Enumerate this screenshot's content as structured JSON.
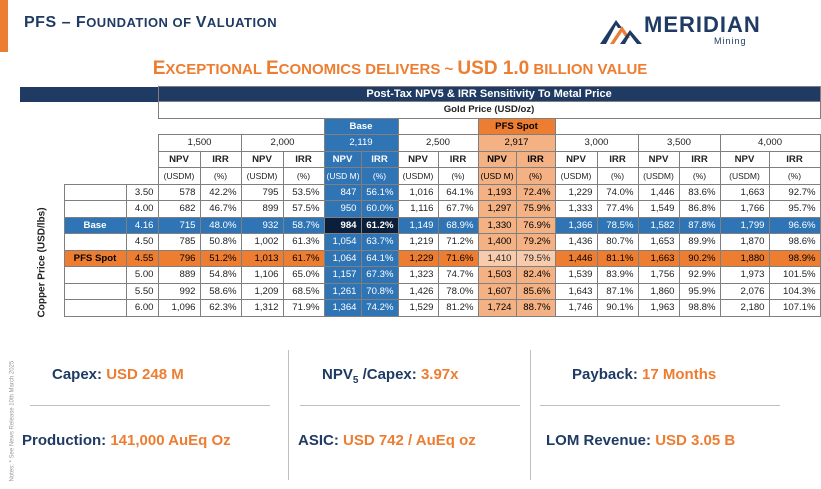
{
  "header": {
    "title_part1": "PFS – F",
    "title_part2": "OUNDATION OF ",
    "title_part3": "V",
    "title_part4": "ALUATION",
    "accent_color": "#ed7d31",
    "brand_color": "#1f3b63"
  },
  "logo": {
    "word": "MERIDIAN",
    "sub": "Mining"
  },
  "headline": {
    "p1": "E",
    "p2": "XCEPTIONAL ",
    "p3": "E",
    "p4": "CONOMICS DELIVERS ~ ",
    "p5": "USD 1.0",
    "p6": " BILLION VALUE"
  },
  "table": {
    "title": "Post-Tax NPV5 & IRR Sensitivity To Metal Price",
    "gold_axis": "Gold Price (USD/oz)",
    "copper_axis": "Copper Price (USD/lbs)",
    "scenario_labels": {
      "base": "Base",
      "spot": "PFS Spot"
    },
    "gold_prices": [
      "1,500",
      "2,000",
      "2,119",
      "2,500",
      "2,917",
      "3,000",
      "3,500",
      "4,000"
    ],
    "col_headers": [
      "NPV",
      "IRR"
    ],
    "units_default": [
      "(USDM)",
      "(%)"
    ],
    "units_base": [
      "(USD M)",
      "(%)"
    ],
    "units_spot": [
      "(USD M)",
      "(%)"
    ],
    "rows": [
      {
        "label": "",
        "cu": "3.50",
        "cells": [
          "578",
          "42.2%",
          "795",
          "53.5%",
          "847",
          "56.1%",
          "1,016",
          "64.1%",
          "1,193",
          "72.4%",
          "1,229",
          "74.0%",
          "1,446",
          "83.6%",
          "1,663",
          "92.7%"
        ]
      },
      {
        "label": "",
        "cu": "4.00",
        "cells": [
          "682",
          "46.7%",
          "899",
          "57.5%",
          "950",
          "60.0%",
          "1,116",
          "67.7%",
          "1,297",
          "75.9%",
          "1,333",
          "77.4%",
          "1,549",
          "86.8%",
          "1,766",
          "95.7%"
        ]
      },
      {
        "label": "Base",
        "cu": "4.16",
        "cells": [
          "715",
          "48.0%",
          "932",
          "58.7%",
          "984",
          "61.2%",
          "1,149",
          "68.9%",
          "1,330",
          "76.9%",
          "1,366",
          "78.5%",
          "1,582",
          "87.8%",
          "1,799",
          "96.6%"
        ]
      },
      {
        "label": "",
        "cu": "4.50",
        "cells": [
          "785",
          "50.8%",
          "1,002",
          "61.3%",
          "1,054",
          "63.7%",
          "1,219",
          "71.2%",
          "1,400",
          "79.2%",
          "1,436",
          "80.7%",
          "1,653",
          "89.9%",
          "1,870",
          "98.6%"
        ]
      },
      {
        "label": "PFS Spot",
        "cu": "4.55",
        "cells": [
          "796",
          "51.2%",
          "1,013",
          "61.7%",
          "1,064",
          "64.1%",
          "1,229",
          "71.6%",
          "1,410",
          "79.5%",
          "1,446",
          "81.1%",
          "1,663",
          "90.2%",
          "1,880",
          "98.9%"
        ]
      },
      {
        "label": "",
        "cu": "5.00",
        "cells": [
          "889",
          "54.8%",
          "1,106",
          "65.0%",
          "1,157",
          "67.3%",
          "1,323",
          "74.7%",
          "1,503",
          "82.4%",
          "1,539",
          "83.9%",
          "1,756",
          "92.9%",
          "1,973",
          "101.5%"
        ]
      },
      {
        "label": "",
        "cu": "5.50",
        "cells": [
          "992",
          "58.6%",
          "1,209",
          "68.5%",
          "1,261",
          "70.8%",
          "1,426",
          "78.0%",
          "1,607",
          "85.6%",
          "1,643",
          "87.1%",
          "1,860",
          "95.9%",
          "2,076",
          "104.3%"
        ]
      },
      {
        "label": "",
        "cu": "6.00",
        "cells": [
          "1,096",
          "62.3%",
          "1,312",
          "71.9%",
          "1,364",
          "74.2%",
          "1,529",
          "81.2%",
          "1,724",
          "88.7%",
          "1,746",
          "90.1%",
          "1,963",
          "98.8%",
          "2,180",
          "107.1%"
        ]
      }
    ]
  },
  "metrics": {
    "capex_label": "Capex: ",
    "capex_value": "USD 248 M",
    "npv_label_a": "NPV",
    "npv_label_sub": "5",
    "npv_label_b": " /Capex: ",
    "npv_value": "3.97x",
    "payback_label": "Payback: ",
    "payback_value": "17 Months",
    "production_label": "Production: ",
    "production_value": "141,000 AuEq Oz",
    "asic_label": "ASIC: ",
    "asic_value": "USD 742 / AuEq oz",
    "lom_label": "LOM Revenue: ",
    "lom_value": "USD 3.05 B"
  },
  "notes": "Notes: * See News Release 10th March 2025"
}
